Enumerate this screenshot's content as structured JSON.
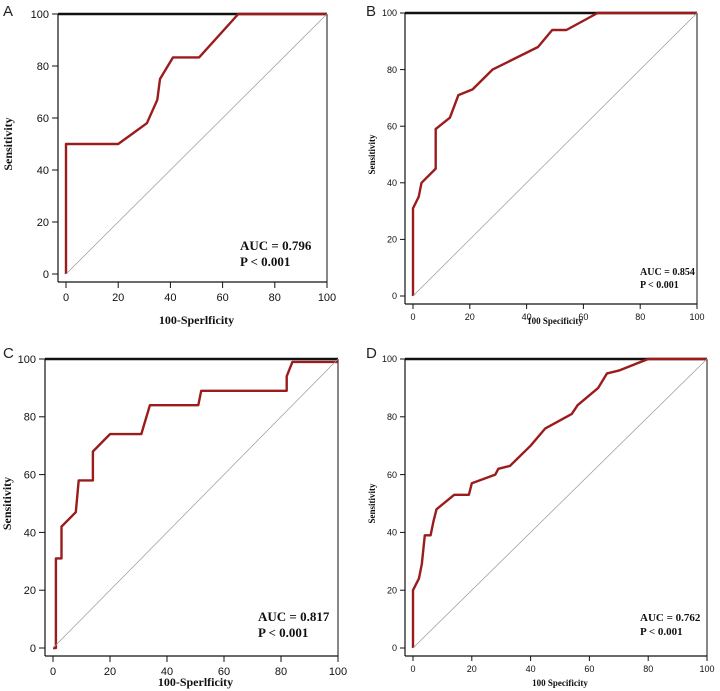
{
  "chart_data": [
    {
      "panel": "A",
      "type": "line",
      "xlabel": "100-Sperlficity",
      "ylabel": "Sensitivity",
      "xlim": [
        0,
        100
      ],
      "ylim": [
        0,
        100
      ],
      "xticks": [
        0,
        20,
        40,
        60,
        80,
        100
      ],
      "yticks": [
        0,
        20,
        40,
        60,
        80,
        100
      ],
      "annotation": [
        "AUC = 0.796",
        "P < 0.001"
      ],
      "series": [
        {
          "name": "ROC",
          "color": "#9b1c1c",
          "x": [
            0,
            0,
            20,
            31,
            35,
            36,
            41,
            51,
            66,
            100
          ],
          "y": [
            0,
            50,
            50,
            58,
            67,
            75,
            83.3,
            83.3,
            100,
            100
          ]
        },
        {
          "name": "reference",
          "color": "#999999",
          "x": [
            0,
            100
          ],
          "y": [
            0,
            100
          ]
        }
      ]
    },
    {
      "panel": "B",
      "type": "line",
      "xlabel": "100 Specificity",
      "ylabel": "Sensitivity",
      "xlim": [
        0,
        100
      ],
      "ylim": [
        0,
        100
      ],
      "xticks": [
        0,
        20,
        40,
        60,
        80,
        100
      ],
      "yticks": [
        0,
        20,
        40,
        60,
        80,
        100
      ],
      "annotation": [
        "AUC = 0.854",
        "P < 0.001"
      ],
      "series": [
        {
          "name": "ROC",
          "color": "#9b1c1c",
          "x": [
            0,
            0,
            2,
            3,
            8,
            8,
            13,
            16,
            21,
            28,
            44,
            49,
            54,
            65,
            100
          ],
          "y": [
            0,
            31,
            35,
            40,
            45,
            59,
            63,
            71,
            73,
            80,
            88,
            94,
            94,
            100,
            100
          ]
        },
        {
          "name": "reference",
          "color": "#999999",
          "x": [
            0,
            100
          ],
          "y": [
            0,
            100
          ]
        }
      ]
    },
    {
      "panel": "C",
      "type": "line",
      "xlabel": "100-Sperlficity",
      "ylabel": "Sensitivity",
      "xlim": [
        0,
        100
      ],
      "ylim": [
        0,
        100
      ],
      "xticks": [
        0,
        20,
        40,
        60,
        80,
        100
      ],
      "yticks": [
        0,
        20,
        40,
        60,
        80,
        100
      ],
      "annotation": [
        "AUC = 0.817",
        "P < 0.001"
      ],
      "series": [
        {
          "name": "ROC",
          "color": "#9b1c1c",
          "x": [
            0,
            1,
            1,
            3,
            3,
            8,
            9,
            14,
            14,
            20,
            31,
            34,
            51,
            52,
            82,
            82,
            84,
            100
          ],
          "y": [
            0,
            0,
            31,
            31,
            42,
            47,
            58,
            58,
            68,
            74,
            74,
            84,
            84,
            89,
            89,
            94,
            99,
            99
          ]
        },
        {
          "name": "reference",
          "color": "#999999",
          "x": [
            0,
            100
          ],
          "y": [
            0,
            100
          ]
        }
      ]
    },
    {
      "panel": "D",
      "type": "line",
      "xlabel": "100 Specificity",
      "ylabel": "Sensitivity",
      "xlim": [
        0,
        100
      ],
      "ylim": [
        0,
        100
      ],
      "xticks": [
        0,
        20,
        40,
        60,
        80,
        100
      ],
      "yticks": [
        0,
        20,
        40,
        60,
        80,
        100
      ],
      "annotation": [
        "AUC = 0.762",
        "P < 0.001"
      ],
      "series": [
        {
          "name": "ROC",
          "color": "#9b1c1c",
          "x": [
            0,
            0,
            2,
            3,
            4,
            6,
            7,
            8,
            14,
            19,
            20,
            28,
            29,
            33,
            40,
            45,
            54,
            56,
            63,
            66,
            70,
            80,
            100
          ],
          "y": [
            0,
            20,
            24,
            29,
            39,
            39,
            44,
            48,
            53,
            53,
            57,
            60,
            62,
            63,
            70,
            76,
            81,
            84,
            90,
            95,
            96,
            100,
            100
          ]
        },
        {
          "name": "reference",
          "color": "#999999",
          "x": [
            0,
            100
          ],
          "y": [
            0,
            100
          ]
        }
      ]
    }
  ]
}
